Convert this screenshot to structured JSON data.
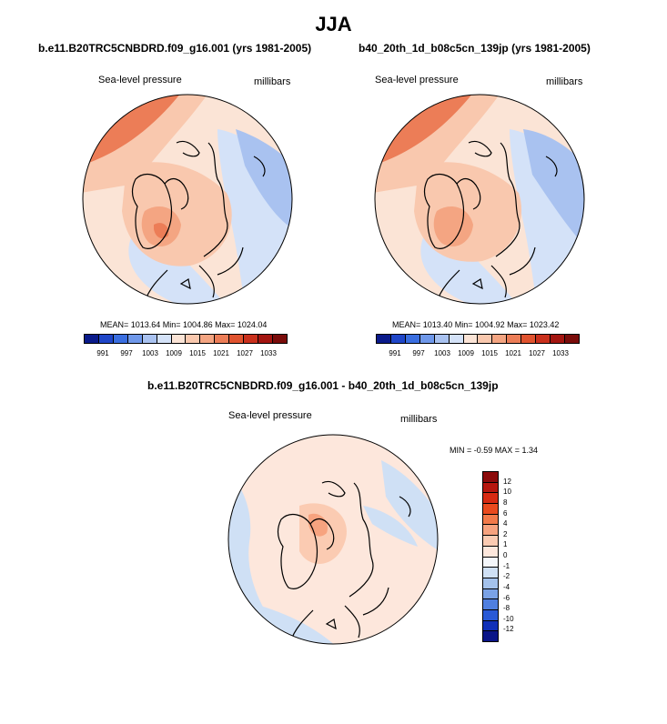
{
  "title": "JJA",
  "panels": [
    {
      "subtitle": "b.e11.B20TRC5CNBDRD.f09_g16.001 (yrs 1981-2005)",
      "variable_label": "Sea-level pressure",
      "units_label": "millibars",
      "stats": "MEAN= 1013.64  Min= 1004.86  Max= 1024.04"
    },
    {
      "subtitle": "b40_20th_1d_b08c5cn_139jp (yrs 1981-2005)",
      "variable_label": "Sea-level pressure",
      "units_label": "millibars",
      "stats": "MEAN= 1013.40  Min= 1004.92  Max= 1023.42"
    },
    {
      "subtitle": "b.e11.B20TRC5CNBDRD.f09_g16.001 - b40_20th_1d_b08c5cn_139jp",
      "variable_label": "Sea-level pressure",
      "units_label": "millibars",
      "stats": "MIN =  -0.59 MAX =   1.34"
    }
  ],
  "colorbar_main": {
    "labels": [
      "991",
      "997",
      "1003",
      "1009",
      "1015",
      "1021",
      "1027",
      "1033"
    ],
    "colors": [
      "#0a1a8a",
      "#1f46c8",
      "#3a6ee0",
      "#6f98ea",
      "#a9c2f0",
      "#d4e2f8",
      "#fbe4d6",
      "#f9c8ae",
      "#f4a582",
      "#ec7d57",
      "#e0532f",
      "#c9301c",
      "#a31510",
      "#7a0c0a"
    ]
  },
  "colorbar_diff": {
    "labels": [
      "12",
      "10",
      "8",
      "6",
      "4",
      "2",
      "1",
      "0",
      "-1",
      "-2",
      "-4",
      "-6",
      "-8",
      "-10",
      "-12"
    ],
    "colors": [
      "#8b0a0a",
      "#b5160e",
      "#d72a12",
      "#e94a1e",
      "#f27a4a",
      "#f7a37f",
      "#fbcbb2",
      "#fde7dc",
      "#f4f7fb",
      "#cfe0f5",
      "#a4c2ec",
      "#7aa2e6",
      "#4f7fe0",
      "#2a5ad6",
      "#1030b8",
      "#0a1588"
    ]
  }
}
